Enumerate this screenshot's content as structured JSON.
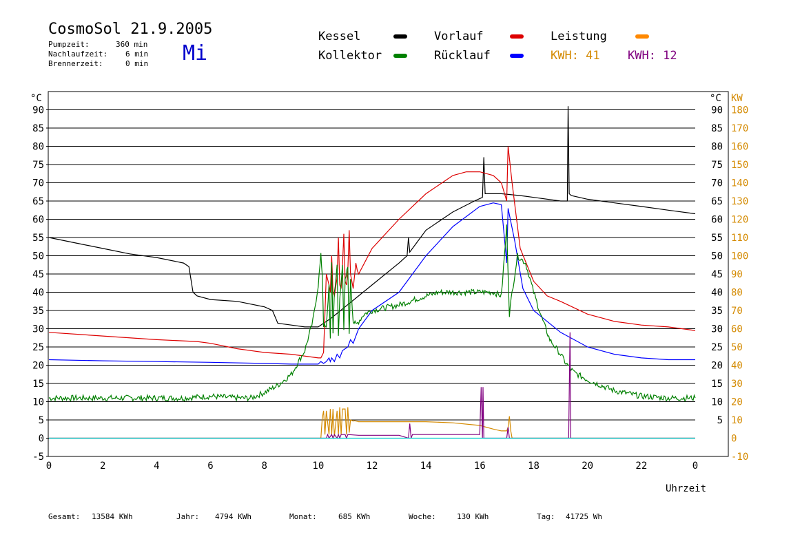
{
  "header": {
    "title": "CosmoSol 21.9.2005",
    "weekday": "Mi",
    "stats": [
      {
        "label": "Pumpzeit:",
        "value": "360 min"
      },
      {
        "label": "Nachlaufzeit:",
        "value": "6 min"
      },
      {
        "label": "Brennerzeit:",
        "value": "0 min"
      }
    ]
  },
  "legend": {
    "items": [
      {
        "name": "Kessel",
        "color": "#000000"
      },
      {
        "name": "Vorlauf",
        "color": "#dd0000"
      },
      {
        "name": "Leistung",
        "color": "#ff8800"
      },
      {
        "name": "Kollektor",
        "color": "#008000"
      },
      {
        "name": "Rücklauf",
        "color": "#0000ff"
      }
    ],
    "kwh_1": "KWH: 41",
    "kwh_1_color": "#d48a00",
    "kwh_2": "KWH: 12",
    "kwh_2_color": "#800080"
  },
  "footer": {
    "gesamt_label": "Gesamt:",
    "gesamt_value": "13584 KWh",
    "jahr_label": "Jahr:",
    "jahr_value": "4794 KWh",
    "monat_label": "Monat:",
    "monat_value": "685 KWh",
    "woche_label": "Woche:",
    "woche_value": "130 KWh",
    "tag_label": "Tag:",
    "tag_value": "41725 Wh"
  },
  "chart_data": {
    "type": "line",
    "xlabel": "Uhrzeit",
    "ylabel_left": "°C",
    "ylabel_right_1": "°C",
    "ylabel_right_2": "KW",
    "xlim": [
      0,
      24
    ],
    "ylim": [
      -5,
      95
    ],
    "x_tick_labels": [
      "0",
      "2",
      "4",
      "6",
      "8",
      "10",
      "12",
      "14",
      "16",
      "18",
      "20",
      "22",
      "0"
    ],
    "y_ticks": [
      -5,
      0,
      5,
      10,
      15,
      20,
      25,
      30,
      35,
      40,
      45,
      50,
      55,
      60,
      65,
      70,
      75,
      80,
      85,
      90
    ],
    "y_right_ticks": [
      5,
      10,
      15,
      20,
      25,
      30,
      35,
      40,
      45,
      50,
      55,
      60,
      65,
      70,
      75,
      80,
      85,
      90
    ],
    "kw_ticks": [
      -10,
      0,
      10,
      20,
      30,
      40,
      50,
      60,
      70,
      80,
      90,
      100,
      110,
      120,
      130,
      140,
      150,
      160,
      170,
      180
    ],
    "kw_axis_color": "#d48a00",
    "grid": true,
    "series": [
      {
        "name": "Kessel",
        "color": "#000000",
        "x": [
          0,
          1,
          2,
          3,
          4,
          5,
          5.2,
          5.35,
          5.5,
          6,
          7,
          8,
          8.3,
          8.5,
          9,
          9.5,
          10,
          10.5,
          11,
          12,
          13,
          13.3,
          13.35,
          13.4,
          13.5,
          14,
          15,
          15.8,
          16.1,
          16.15,
          16.2,
          16.8,
          17.5,
          18,
          19,
          19.25,
          19.28,
          19.32,
          19.4,
          20,
          21,
          22,
          23,
          24
        ],
        "y": [
          55,
          53.5,
          52,
          50.5,
          49.5,
          48,
          47,
          40,
          39,
          38,
          37.5,
          36,
          35,
          31.5,
          31,
          30.5,
          30.5,
          33,
          36,
          42,
          48,
          50,
          55,
          51,
          52,
          57,
          62,
          65,
          66,
          77,
          67,
          67,
          66.5,
          66,
          65,
          65,
          91,
          67,
          66.5,
          65.5,
          64.5,
          63.5,
          62.5,
          61.5
        ]
      },
      {
        "name": "Vorlauf",
        "color": "#dd0000",
        "x": [
          0,
          2,
          4,
          5.5,
          6,
          7,
          8,
          9,
          10,
          10.1,
          10.2,
          10.3,
          10.4,
          10.45,
          10.5,
          10.55,
          10.6,
          10.7,
          10.75,
          10.8,
          10.85,
          10.9,
          10.95,
          11.0,
          11.05,
          11.1,
          11.15,
          11.2,
          11.3,
          11.4,
          11.45,
          11.5,
          12,
          13,
          14,
          15,
          15.5,
          16,
          16.5,
          16.8,
          17.0,
          17.05,
          17.2,
          17.5,
          18,
          18.5,
          19,
          20,
          21,
          22,
          23,
          24
        ],
        "y": [
          29,
          28,
          27,
          26.5,
          26,
          24.5,
          23.5,
          23,
          22,
          22,
          23.5,
          45,
          42,
          40,
          50,
          40,
          39,
          44,
          55,
          42,
          41,
          47,
          56,
          43,
          42,
          46,
          57,
          45,
          41,
          48,
          46,
          45,
          52,
          60,
          67,
          72,
          73,
          73,
          72,
          70,
          65,
          80,
          70,
          52,
          43,
          39,
          37.5,
          34,
          32,
          31,
          30.5,
          29.5
        ]
      },
      {
        "name": "Rücklauf",
        "color": "#0000ff",
        "x": [
          0,
          2,
          4,
          6,
          8,
          9,
          10,
          10.1,
          10.2,
          10.3,
          10.4,
          10.45,
          10.5,
          10.6,
          10.7,
          10.8,
          10.9,
          11,
          11.1,
          11.2,
          11.3,
          11.4,
          11.5,
          12,
          13,
          14,
          15,
          16,
          16.5,
          16.8,
          17.0,
          17.05,
          17.3,
          17.6,
          18,
          19,
          20,
          21,
          22,
          23,
          24
        ],
        "y": [
          21.5,
          21.2,
          21,
          20.8,
          20.5,
          20.3,
          20.3,
          21,
          20.5,
          21,
          22,
          21,
          22,
          21,
          23,
          22,
          24,
          24.5,
          25,
          27,
          26,
          28,
          30,
          35,
          40,
          50,
          58,
          63.5,
          64.5,
          64,
          48,
          63,
          54,
          41,
          35,
          29,
          25,
          23,
          22,
          21.5,
          21.5
        ]
      },
      {
        "name": "Kollektor",
        "color": "#008000",
        "noise": 1.6,
        "x": [
          0,
          1,
          2,
          3,
          4,
          5,
          6,
          7,
          7.5,
          8,
          8.5,
          9,
          9.5,
          9.8,
          10.0,
          10.1,
          10.15,
          10.2,
          10.3,
          10.4,
          10.45,
          10.5,
          10.55,
          10.6,
          10.7,
          10.75,
          10.8,
          10.9,
          10.95,
          11.0,
          11.1,
          11.15,
          11.2,
          11.3,
          11.4,
          11.5,
          11.7,
          12,
          13,
          14,
          14.5,
          15,
          16,
          16.5,
          16.8,
          17.0,
          17.1,
          17.2,
          17.4,
          17.7,
          18,
          18.3,
          18.6,
          19.0,
          19.2,
          19.5,
          20,
          21,
          22,
          23,
          24
        ],
        "y": [
          11,
          11,
          11,
          11,
          11,
          11,
          11.5,
          11,
          11,
          12.5,
          14.5,
          17.5,
          24,
          32,
          42,
          50,
          45,
          31,
          30,
          42,
          27,
          48,
          29,
          40,
          47,
          28,
          38,
          48,
          29,
          43,
          47,
          28,
          44,
          32,
          31,
          32,
          34,
          35,
          36.5,
          39,
          40,
          40,
          40,
          40,
          39,
          58,
          34,
          40,
          50,
          48,
          40,
          33,
          27,
          23,
          20.5,
          18,
          16,
          13,
          11.5,
          11,
          11
        ]
      },
      {
        "name": "Leistung",
        "color": "#d48a00",
        "x": [
          0,
          10.1,
          10.15,
          10.2,
          10.25,
          10.3,
          10.4,
          10.45,
          10.5,
          10.55,
          10.6,
          10.7,
          10.75,
          10.8,
          10.85,
          10.9,
          11.0,
          11.05,
          11.1,
          11.15,
          11.2,
          11.3,
          11.35,
          11.4,
          11.45,
          11.5,
          12,
          13,
          14,
          15,
          16,
          16.5,
          16.8,
          17,
          17.05,
          17.1,
          17.15,
          17.2,
          24
        ],
        "y": [
          0,
          0,
          5.5,
          7.5,
          1,
          7.5,
          1,
          8,
          1,
          8,
          0.5,
          7.5,
          1,
          8.5,
          1,
          8,
          8,
          1,
          8.5,
          1.5,
          5,
          4.7,
          4.8,
          4.7,
          4.6,
          4.5,
          4.5,
          4.5,
          4.5,
          4.2,
          3.5,
          2.5,
          2,
          2,
          3,
          6,
          2,
          0,
          0
        ]
      },
      {
        "name": "Leistung2",
        "color": "#800080",
        "x": [
          0,
          10.1,
          10.3,
          10.35,
          10.4,
          10.5,
          10.55,
          10.6,
          10.7,
          10.75,
          10.8,
          10.85,
          11.0,
          11.05,
          11.1,
          11.5,
          12,
          13,
          13.35,
          13.4,
          13.45,
          13.5,
          14,
          15,
          16,
          16.05,
          16.1,
          16.12,
          16.15,
          16.5,
          17,
          17.05,
          17.1,
          19.3,
          19.35,
          19.38,
          19.4,
          24
        ],
        "y": [
          0,
          0,
          0,
          1,
          0,
          1,
          0,
          1,
          0,
          1,
          0,
          1,
          1,
          0,
          1,
          0.8,
          0.8,
          0.8,
          0,
          4,
          0,
          1,
          1,
          1,
          1,
          14,
          0,
          14,
          0,
          0,
          0,
          3,
          0,
          0,
          29,
          0,
          0,
          0
        ]
      },
      {
        "name": "Nulllinie",
        "color": "#00cccc",
        "x": [
          0,
          24
        ],
        "y": [
          0,
          0
        ]
      }
    ]
  }
}
